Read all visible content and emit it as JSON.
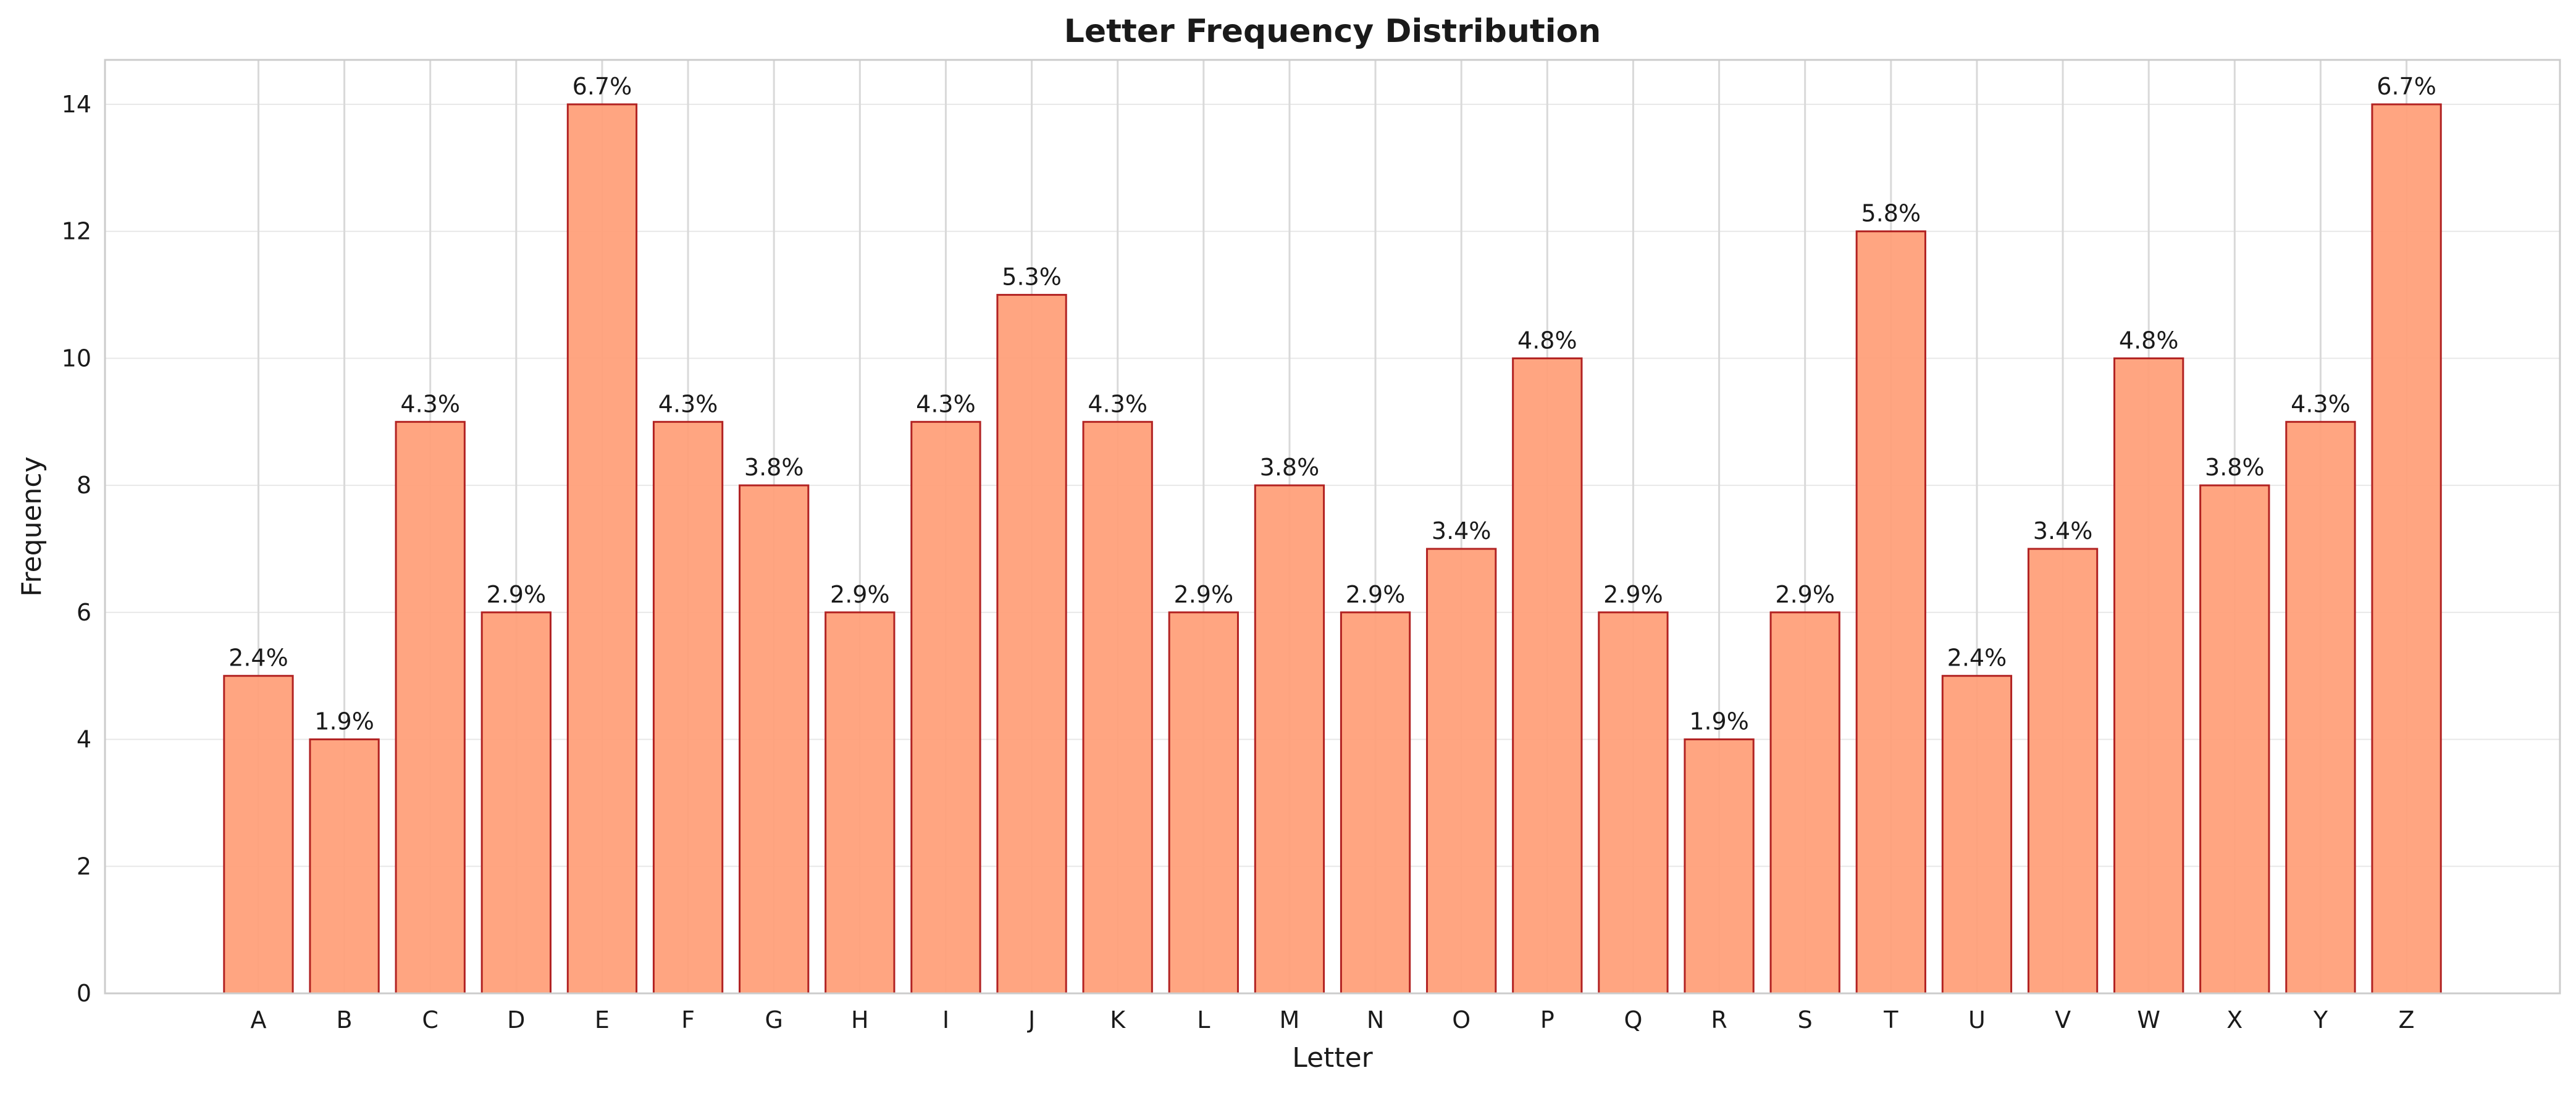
{
  "chart_data": {
    "type": "bar",
    "title": "Letter Frequency Distribution",
    "xlabel": "Letter",
    "ylabel": "Frequency",
    "categories": [
      "A",
      "B",
      "C",
      "D",
      "E",
      "F",
      "G",
      "H",
      "I",
      "J",
      "K",
      "L",
      "M",
      "N",
      "O",
      "P",
      "Q",
      "R",
      "S",
      "T",
      "U",
      "V",
      "W",
      "X",
      "Y",
      "Z"
    ],
    "values": [
      5,
      4,
      9,
      6,
      14,
      9,
      8,
      6,
      9,
      11,
      9,
      6,
      8,
      6,
      7,
      10,
      6,
      4,
      6,
      12,
      5,
      7,
      10,
      8,
      9,
      14
    ],
    "bar_labels": [
      "2.4%",
      "1.9%",
      "4.3%",
      "2.9%",
      "6.7%",
      "4.3%",
      "3.8%",
      "2.9%",
      "4.3%",
      "5.3%",
      "4.3%",
      "2.9%",
      "3.8%",
      "2.9%",
      "3.4%",
      "4.8%",
      "2.9%",
      "1.9%",
      "2.9%",
      "5.8%",
      "2.4%",
      "3.4%",
      "4.8%",
      "3.8%",
      "4.3%",
      "6.7%"
    ],
    "yticks": [
      0,
      2,
      4,
      6,
      8,
      10,
      12,
      14
    ],
    "ylim": [
      0,
      14.7
    ],
    "grid": true,
    "legend": false,
    "colors": {
      "bar_fill": "#ffa07a",
      "bar_edge": "#b22222",
      "grid": "#d9d9d9",
      "axes_edge": "#cccccc"
    }
  }
}
